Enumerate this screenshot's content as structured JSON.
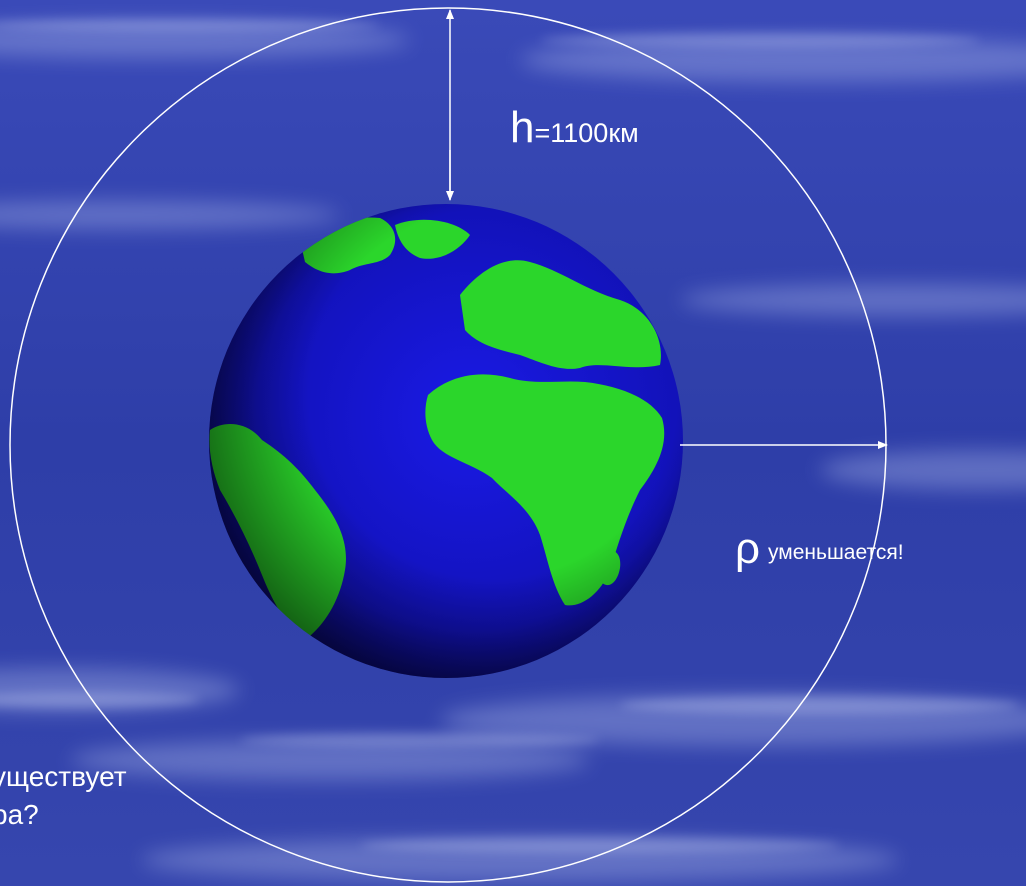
{
  "slide": {
    "height_label": {
      "symbol": "h",
      "value": "=1100км"
    },
    "density_label": {
      "symbol": "ρ",
      "text": "уменьшается!"
    },
    "question_lines": [
      "уществует",
      "ра?"
    ]
  },
  "colors": {
    "background": "#2f3fae",
    "ocean": "#1414c8",
    "land": "#2bd62b",
    "orbit_line": "#ffffff",
    "text": "#ffffff"
  },
  "icons": {
    "planet": "earth-globe-icon"
  }
}
